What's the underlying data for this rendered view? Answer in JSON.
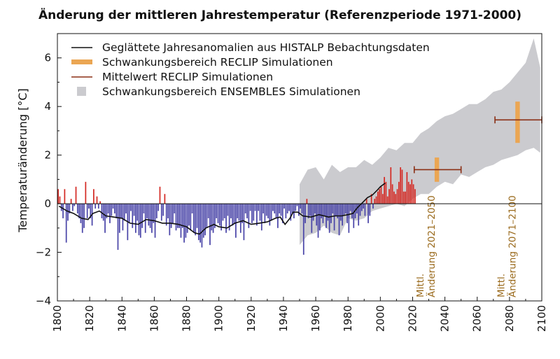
{
  "chart_data": {
    "type": "bar",
    "title": "Änderung der mittleren Jahrestemperatur (Referenzperiode 1971-2000)",
    "ylabel": "Temperaturänderung [°C]",
    "xlabel": "",
    "xlim": [
      1800,
      2100
    ],
    "ylim": [
      -4,
      7
    ],
    "x_ticks": [
      "1800",
      "1820",
      "1840",
      "1860",
      "1880",
      "1900",
      "1920",
      "1940",
      "1960",
      "1980",
      "2000",
      "2020",
      "2040",
      "2060",
      "2080",
      "2100"
    ],
    "y_ticks": [
      "6",
      "4",
      "2",
      "0",
      "−2",
      "−4"
    ],
    "grid": false,
    "legend_placement": "top-left",
    "legend": [
      {
        "label": "Geglättete Jahresanomalien aus HISTALP Bebachtungsdaten",
        "kind": "line",
        "color": "#111111"
      },
      {
        "label": "Schwankungsbereich RECLIP Simulationen",
        "kind": "thick-bar",
        "color": "#eba653"
      },
      {
        "label": "Mittelwert RECLIP Simulationen",
        "kind": "line",
        "color": "#8b2f14"
      },
      {
        "label": "Schwankungsbereich ENSEMBLES Simulationen",
        "kind": "square",
        "color": "#cbcbcf"
      }
    ],
    "colors": {
      "positive": "#d42a24",
      "negative": "#4a45a8",
      "smooth": "#111111",
      "reclip_range": "#eba653",
      "reclip_mean": "#8b2f14",
      "ensembles": "#cbcbcf"
    },
    "annual_anomalies": {
      "x_start": 1800,
      "values": [
        0.6,
        0.3,
        -0.3,
        -0.6,
        0.6,
        -1.6,
        -0.7,
        -0.4,
        0.2,
        -0.3,
        -0.1,
        0.7,
        -0.4,
        -0.6,
        -0.8,
        -1.2,
        -1.0,
        0.9,
        -0.6,
        -0.2,
        -0.6,
        -0.9,
        0.6,
        -0.2,
        0.3,
        -0.2,
        0.1,
        -0.6,
        -0.7,
        -1.2,
        -0.6,
        -0.4,
        -0.8,
        -0.5,
        -0.2,
        -0.4,
        -0.6,
        -1.9,
        -1.2,
        -0.6,
        -1.1,
        -0.7,
        -0.4,
        -1.5,
        -0.8,
        -0.3,
        -1.0,
        -0.5,
        -1.2,
        -0.7,
        -1.3,
        -1.4,
        -1.0,
        -0.4,
        -1.2,
        -0.6,
        -0.9,
        -1.0,
        -1.2,
        -0.8,
        -1.4,
        -0.6,
        -0.3,
        0.7,
        -0.7,
        -0.5,
        0.4,
        -0.9,
        -0.6,
        -1.3,
        -1.0,
        -0.8,
        -0.4,
        -1.1,
        -1.0,
        -1.0,
        -1.4,
        -1.0,
        -1.6,
        -1.4,
        -1.2,
        -0.9,
        -1.1,
        -0.4,
        -1.2,
        -1.3,
        -1.0,
        -1.5,
        -1.6,
        -1.8,
        -1.4,
        -1.3,
        -1.0,
        -0.6,
        -1.7,
        -1.1,
        -1.2,
        -1.0,
        -0.6,
        -0.8,
        -0.9,
        -1.1,
        -0.7,
        -0.6,
        -1.2,
        -0.5,
        -1.1,
        -0.6,
        -0.9,
        -0.8,
        -1.4,
        -0.6,
        -0.7,
        -1.2,
        -0.8,
        -1.5,
        -0.4,
        -0.6,
        -1.0,
        -0.3,
        -0.8,
        -0.7,
        -0.3,
        -0.9,
        -0.3,
        -0.7,
        -1.1,
        -0.4,
        -0.8,
        -0.5,
        -0.6,
        -0.9,
        -0.7,
        -0.3,
        -0.4,
        -0.6,
        -1.0,
        -0.4,
        -0.5,
        -0.8,
        -0.2,
        -0.6,
        -0.4,
        -0.3,
        -0.7,
        -0.4,
        -0.6,
        -0.3,
        -0.1,
        -0.5,
        -0.2,
        -0.4,
        -2.1,
        -0.8,
        0.2,
        -0.6,
        -0.5,
        -1.2,
        -0.7,
        -0.4,
        -0.9,
        -1.4,
        -1.1,
        -0.6,
        -0.8,
        -0.5,
        -1.0,
        -0.7,
        -1.2,
        -0.8,
        -0.4,
        -1.1,
        -0.5,
        -0.6,
        -1.3,
        -0.7,
        -0.9,
        -0.5,
        -0.4,
        -0.8,
        -1.2,
        -0.3,
        -0.6,
        -1.0,
        -0.6,
        -0.4,
        -0.9,
        -0.5,
        -0.3,
        -0.2,
        -0.5,
        0.2,
        -0.8,
        -0.5,
        0.4,
        -0.2,
        0.2,
        0.3,
        0.5,
        0.6,
        0.7,
        0.4,
        1.1,
        0.9,
        0.3,
        0.6,
        1.5,
        0.8,
        0.5,
        0.4,
        0.6,
        0.9,
        1.5,
        1.4,
        0.5,
        0.5,
        1.3,
        0.9,
        0.8,
        1.0,
        0.8,
        0.6
      ]
    },
    "smoothed": {
      "x": [
        1801,
        1806,
        1810,
        1815,
        1819,
        1822,
        1826,
        1830,
        1835,
        1840,
        1845,
        1850,
        1855,
        1860,
        1865,
        1870,
        1875,
        1880,
        1885,
        1888,
        1892,
        1897,
        1900,
        1905,
        1910,
        1915,
        1920,
        1925,
        1930,
        1935,
        1938,
        1941,
        1944,
        1946,
        1949,
        1952,
        1957,
        1962,
        1968,
        1972,
        1976,
        1980,
        1983,
        1986,
        1989,
        1992,
        1995,
        1998,
        2000,
        2003
      ],
      "y": [
        -0.1,
        -0.3,
        -0.4,
        -0.6,
        -0.65,
        -0.4,
        -0.3,
        -0.5,
        -0.55,
        -0.6,
        -0.8,
        -0.85,
        -0.65,
        -0.7,
        -0.8,
        -0.8,
        -0.85,
        -0.95,
        -1.2,
        -1.25,
        -1.0,
        -0.85,
        -0.95,
        -1.0,
        -0.8,
        -0.7,
        -0.85,
        -0.8,
        -0.75,
        -0.6,
        -0.55,
        -0.85,
        -0.6,
        -0.35,
        -0.35,
        -0.5,
        -0.55,
        -0.45,
        -0.55,
        -0.5,
        -0.5,
        -0.45,
        -0.4,
        -0.15,
        0.05,
        0.25,
        0.35,
        0.55,
        0.7,
        0.85
      ]
    },
    "ensembles_range": {
      "x": [
        1950,
        1955,
        1960,
        1965,
        1970,
        1975,
        1980,
        1985,
        1990,
        1995,
        2000,
        2005,
        2010,
        2015,
        2020,
        2025,
        2030,
        2035,
        2040,
        2045,
        2050,
        2055,
        2060,
        2065,
        2070,
        2075,
        2080,
        2085,
        2090,
        2095,
        2099
      ],
      "upper": [
        0.8,
        1.4,
        1.5,
        1.0,
        1.6,
        1.3,
        1.5,
        1.5,
        1.8,
        1.6,
        1.9,
        2.3,
        2.2,
        2.5,
        2.5,
        2.9,
        3.1,
        3.4,
        3.6,
        3.7,
        3.9,
        4.1,
        4.1,
        4.3,
        4.6,
        4.7,
        5.0,
        5.4,
        5.8,
        6.8,
        5.6
      ],
      "lower": [
        -1.7,
        -1.3,
        -1.2,
        -0.9,
        -1.2,
        -1.3,
        -0.6,
        -0.7,
        -0.6,
        -0.3,
        -0.2,
        -0.1,
        0.0,
        -0.1,
        0.2,
        0.4,
        0.4,
        0.7,
        0.9,
        0.8,
        1.2,
        1.1,
        1.3,
        1.5,
        1.6,
        1.8,
        1.9,
        2.0,
        2.2,
        2.3,
        2.1
      ]
    },
    "reclip": [
      {
        "period": [
          2021,
          2050
        ],
        "center_year": 2035,
        "mean": 1.4,
        "range": [
          0.9,
          1.9
        ],
        "label_line1": "Mittl.",
        "label_line2": "Änderung 2021–2050"
      },
      {
        "period": [
          2071,
          2100
        ],
        "center_year": 2085,
        "mean": 3.45,
        "range": [
          2.5,
          4.2
        ],
        "label_line1": "Mittl.",
        "label_line2": "Änderung 2071–2100"
      }
    ]
  }
}
